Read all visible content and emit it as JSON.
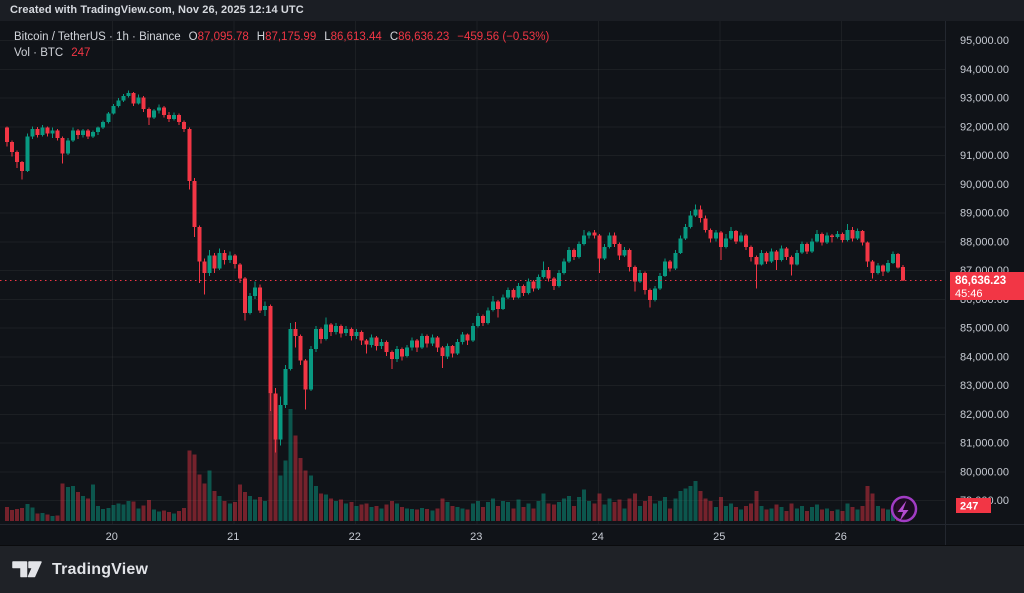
{
  "attribution": "Created with TradingView.com, Nov 26, 2025 12:14 UTC",
  "legend": {
    "title": "Bitcoin / TetherUS · 1h · Binance",
    "o_label": "O",
    "o": "87,095.78",
    "h_label": "H",
    "h": "87,175.99",
    "l_label": "L",
    "l": "86,613.44",
    "c_label": "C",
    "c": "86,636.23",
    "change": "−459.56 (−0.53%)",
    "vol_label": "Vol · BTC",
    "vol_value": "247"
  },
  "price_tag": {
    "price": "86,636.23",
    "countdown": "45:46"
  },
  "vol_tag": {
    "value": "247"
  },
  "footer": {
    "brand": "TradingView"
  },
  "colors": {
    "up": "#089981",
    "down": "#f23645",
    "up_vol": "rgba(8,153,129,0.5)",
    "down_vol": "rgba(242,54,69,0.45)",
    "tag_bg": "#f23645",
    "tag_text": "#ffffff",
    "axis_text": "#c7cbd3",
    "grid": "rgba(250,250,250,0.05)",
    "border": "#23272f",
    "last_price_line": "#f23645",
    "lightning_ring": "#a13cc4",
    "lightning_bolt": "#b44bd0"
  },
  "chart_data": {
    "type": "candlestick+volume",
    "title": "Bitcoin / TetherUS · 1h · Binance",
    "symbol": "BTCUSDT",
    "interval": "1h",
    "exchange": "Binance",
    "last_price": 86636.23,
    "last_volume": 247,
    "ylim": [
      79000,
      95000
    ],
    "grid": true,
    "y_ticks": [
      {
        "v": 95000,
        "label": "95,000.00"
      },
      {
        "v": 94000,
        "label": "94,000.00"
      },
      {
        "v": 93000,
        "label": "93,000.00"
      },
      {
        "v": 92000,
        "label": "92,000.00"
      },
      {
        "v": 91000,
        "label": "91,000.00"
      },
      {
        "v": 90000,
        "label": "90,000.00"
      },
      {
        "v": 89000,
        "label": "89,000.00"
      },
      {
        "v": 88000,
        "label": "88,000.00"
      },
      {
        "v": 87000,
        "label": "87,000.00"
      },
      {
        "v": 86000,
        "label": "86,000.00"
      },
      {
        "v": 85000,
        "label": "85,000.00"
      },
      {
        "v": 84000,
        "label": "84,000.00"
      },
      {
        "v": 83000,
        "label": "83,000.00"
      },
      {
        "v": 82000,
        "label": "82,000.00"
      },
      {
        "v": 81000,
        "label": "81,000.00"
      },
      {
        "v": 80000,
        "label": "80,000.00"
      },
      {
        "v": 79000,
        "label": "79,000.00"
      }
    ],
    "x_ticks": [
      {
        "label": "20",
        "i": 20.7
      },
      {
        "label": "21",
        "i": 44.7
      },
      {
        "label": "22",
        "i": 68.7
      },
      {
        "label": "23",
        "i": 92.7
      },
      {
        "label": "24",
        "i": 116.7
      },
      {
        "label": "25",
        "i": 140.7
      },
      {
        "label": "26",
        "i": 164.7
      }
    ],
    "candles_format": [
      "open",
      "high",
      "low",
      "close",
      "volume_btc"
    ],
    "candles": [
      [
        91950,
        92000,
        91300,
        91450,
        560
      ],
      [
        91450,
        91500,
        90950,
        91100,
        440
      ],
      [
        91100,
        91150,
        90550,
        90750,
        480
      ],
      [
        90750,
        90800,
        90150,
        90450,
        520
      ],
      [
        90450,
        91750,
        90400,
        91650,
        680
      ],
      [
        91650,
        92000,
        91550,
        91900,
        540
      ],
      [
        91900,
        91980,
        91600,
        91700,
        300
      ],
      [
        91700,
        92050,
        91650,
        91950,
        320
      ],
      [
        91950,
        92000,
        91650,
        91750,
        260
      ],
      [
        91750,
        91950,
        91600,
        91850,
        200
      ],
      [
        91850,
        91900,
        91500,
        91600,
        220
      ],
      [
        91600,
        91650,
        90700,
        91050,
        1500
      ],
      [
        91050,
        91600,
        91000,
        91500,
        1350
      ],
      [
        91500,
        91950,
        91450,
        91850,
        1400
      ],
      [
        91850,
        91900,
        91550,
        91700,
        1150
      ],
      [
        91700,
        91900,
        91600,
        91850,
        1000
      ],
      [
        91850,
        91900,
        91550,
        91650,
        900
      ],
      [
        91650,
        91850,
        91600,
        91800,
        1450
      ],
      [
        91800,
        92000,
        91700,
        91950,
        600
      ],
      [
        91950,
        92200,
        91900,
        92150,
        480
      ],
      [
        92150,
        92500,
        92100,
        92450,
        520
      ],
      [
        92450,
        92780,
        92400,
        92700,
        640
      ],
      [
        92700,
        92980,
        92650,
        92900,
        700
      ],
      [
        92900,
        93120,
        92850,
        93050,
        660
      ],
      [
        93050,
        93250,
        93000,
        93150,
        800
      ],
      [
        93150,
        93200,
        92700,
        92800,
        780
      ],
      [
        92800,
        93100,
        92750,
        93000,
        500
      ],
      [
        93000,
        93050,
        92500,
        92600,
        620
      ],
      [
        92600,
        92650,
        92050,
        92300,
        840
      ],
      [
        92300,
        92600,
        92250,
        92550,
        460
      ],
      [
        92550,
        92750,
        92450,
        92650,
        380
      ],
      [
        92650,
        92700,
        92300,
        92400,
        420
      ],
      [
        92400,
        92500,
        92150,
        92250,
        350
      ],
      [
        92250,
        92480,
        92200,
        92400,
        300
      ],
      [
        92400,
        92450,
        92050,
        92150,
        400
      ],
      [
        92150,
        92200,
        91800,
        91900,
        520
      ],
      [
        91900,
        91950,
        89800,
        90100,
        2800
      ],
      [
        90100,
        90200,
        88150,
        88500,
        2650
      ],
      [
        88500,
        88550,
        86550,
        87300,
        1850
      ],
      [
        87300,
        87400,
        86150,
        86900,
        1500
      ],
      [
        86900,
        87700,
        86800,
        87500,
        2000
      ],
      [
        87500,
        87600,
        86900,
        87050,
        1200
      ],
      [
        87050,
        87750,
        87000,
        87600,
        1000
      ],
      [
        87600,
        87700,
        87200,
        87350,
        800
      ],
      [
        87350,
        87650,
        87250,
        87500,
        700
      ],
      [
        87500,
        87550,
        87050,
        87200,
        750
      ],
      [
        87200,
        87250,
        86550,
        86700,
        1450
      ],
      [
        86700,
        86750,
        85250,
        85500,
        1150
      ],
      [
        85500,
        86200,
        85450,
        86100,
        1000
      ],
      [
        86100,
        86600,
        86000,
        86400,
        850
      ],
      [
        86400,
        86500,
        85500,
        85600,
        950
      ],
      [
        85600,
        85900,
        85400,
        85750,
        800
      ],
      [
        85750,
        85800,
        82100,
        82700,
        5050
      ],
      [
        82700,
        82900,
        80650,
        81100,
        3800
      ],
      [
        81100,
        82600,
        80900,
        82300,
        1800
      ],
      [
        82300,
        83700,
        82200,
        83550,
        2400
      ],
      [
        83550,
        85150,
        83500,
        84950,
        4450
      ],
      [
        84950,
        85200,
        84300,
        84700,
        3400
      ],
      [
        84700,
        84750,
        83700,
        83850,
        2500
      ],
      [
        83850,
        83900,
        82150,
        82850,
        2000
      ],
      [
        82850,
        84350,
        82800,
        84250,
        1800
      ],
      [
        84250,
        85050,
        84150,
        84950,
        1400
      ],
      [
        84950,
        85000,
        84450,
        84600,
        1100
      ],
      [
        84600,
        85350,
        84550,
        85100,
        1050
      ],
      [
        85100,
        85150,
        84700,
        84850,
        900
      ],
      [
        84850,
        85150,
        84750,
        85050,
        800
      ],
      [
        85050,
        85100,
        84650,
        84800,
        850
      ],
      [
        84800,
        85050,
        84700,
        84950,
        700
      ],
      [
        84950,
        85000,
        84550,
        84700,
        750
      ],
      [
        84700,
        84950,
        84600,
        84850,
        600
      ],
      [
        84850,
        84900,
        84400,
        84550,
        650
      ],
      [
        84550,
        84600,
        84100,
        84400,
        700
      ],
      [
        84400,
        84750,
        84300,
        84650,
        550
      ],
      [
        84650,
        84700,
        84200,
        84350,
        600
      ],
      [
        84350,
        84600,
        84250,
        84500,
        500
      ],
      [
        84500,
        84550,
        84000,
        84150,
        650
      ],
      [
        84150,
        84200,
        83550,
        83900,
        800
      ],
      [
        83900,
        84350,
        83800,
        84250,
        700
      ],
      [
        84250,
        84300,
        83850,
        84000,
        550
      ],
      [
        84000,
        84400,
        83950,
        84300,
        500
      ],
      [
        84300,
        84650,
        84200,
        84550,
        480
      ],
      [
        84550,
        84600,
        84150,
        84300,
        450
      ],
      [
        84300,
        84800,
        84250,
        84700,
        520
      ],
      [
        84700,
        84750,
        84300,
        84450,
        480
      ],
      [
        84450,
        84750,
        84350,
        84650,
        420
      ],
      [
        84650,
        84700,
        84150,
        84300,
        500
      ],
      [
        84300,
        84350,
        83600,
        84000,
        900
      ],
      [
        84000,
        84450,
        83900,
        84350,
        750
      ],
      [
        84350,
        84400,
        83950,
        84100,
        600
      ],
      [
        84100,
        84600,
        84050,
        84500,
        550
      ],
      [
        84500,
        84850,
        84400,
        84750,
        500
      ],
      [
        84750,
        84800,
        84400,
        84550,
        450
      ],
      [
        84550,
        85150,
        84500,
        85050,
        700
      ],
      [
        85050,
        85500,
        85000,
        85400,
        800
      ],
      [
        85400,
        85450,
        85050,
        85150,
        550
      ],
      [
        85150,
        85700,
        85100,
        85600,
        750
      ],
      [
        85600,
        86100,
        85550,
        85900,
        900
      ],
      [
        85900,
        85950,
        85350,
        85650,
        600
      ],
      [
        85650,
        86150,
        85600,
        86050,
        800
      ],
      [
        86050,
        86400,
        86000,
        86300,
        750
      ],
      [
        86300,
        86350,
        85950,
        86050,
        500
      ],
      [
        86050,
        86550,
        86000,
        86450,
        850
      ],
      [
        86450,
        86500,
        86100,
        86200,
        550
      ],
      [
        86200,
        86700,
        86150,
        86600,
        700
      ],
      [
        86600,
        86650,
        86250,
        86350,
        500
      ],
      [
        86350,
        86850,
        86300,
        86750,
        800
      ],
      [
        86750,
        87300,
        86700,
        87000,
        1100
      ],
      [
        87000,
        87100,
        86600,
        86700,
        700
      ],
      [
        86700,
        86750,
        86300,
        86450,
        650
      ],
      [
        86450,
        87000,
        86400,
        86900,
        750
      ],
      [
        86900,
        87400,
        86850,
        87300,
        900
      ],
      [
        87300,
        87800,
        87250,
        87700,
        1000
      ],
      [
        87700,
        87750,
        87350,
        87450,
        600
      ],
      [
        87450,
        88000,
        87400,
        87900,
        950
      ],
      [
        87900,
        88400,
        87850,
        88200,
        1250
      ],
      [
        88200,
        88350,
        88100,
        88300,
        800
      ],
      [
        88300,
        88400,
        88100,
        88200,
        700
      ],
      [
        88200,
        88250,
        86900,
        87400,
        1100
      ],
      [
        87400,
        87900,
        87350,
        87800,
        650
      ],
      [
        87800,
        88300,
        87750,
        88200,
        900
      ],
      [
        88200,
        88300,
        87800,
        87900,
        750
      ],
      [
        87900,
        87950,
        87350,
        87500,
        850
      ],
      [
        87500,
        87800,
        87450,
        87700,
        500
      ],
      [
        87700,
        87750,
        86950,
        87100,
        900
      ],
      [
        87100,
        87150,
        86250,
        86600,
        1100
      ],
      [
        86600,
        87000,
        86550,
        86900,
        600
      ],
      [
        86900,
        86950,
        86150,
        86300,
        800
      ],
      [
        86300,
        86350,
        85700,
        85950,
        1000
      ],
      [
        85950,
        86450,
        85900,
        86350,
        700
      ],
      [
        86350,
        86900,
        86300,
        86800,
        800
      ],
      [
        86800,
        87400,
        86750,
        87300,
        950
      ],
      [
        87300,
        87350,
        86950,
        87050,
        500
      ],
      [
        87050,
        87700,
        87000,
        87600,
        900
      ],
      [
        87600,
        88200,
        87550,
        88100,
        1200
      ],
      [
        88100,
        88600,
        88050,
        88500,
        1300
      ],
      [
        88500,
        89050,
        88450,
        88900,
        1400
      ],
      [
        88900,
        89280,
        88850,
        89100,
        1600
      ],
      [
        89100,
        89250,
        88650,
        88800,
        1200
      ],
      [
        88800,
        88900,
        88300,
        88400,
        900
      ],
      [
        88400,
        88450,
        87950,
        88100,
        800
      ],
      [
        88100,
        88400,
        88000,
        88300,
        550
      ],
      [
        88300,
        88350,
        87350,
        87800,
        950
      ],
      [
        87800,
        88250,
        87750,
        88100,
        600
      ],
      [
        88100,
        88500,
        88050,
        88350,
        700
      ],
      [
        88350,
        88400,
        87900,
        88000,
        550
      ],
      [
        88000,
        88300,
        87950,
        88200,
        450
      ],
      [
        88200,
        88250,
        87700,
        87800,
        600
      ],
      [
        87800,
        87850,
        87300,
        87450,
        700
      ],
      [
        87450,
        87500,
        86350,
        87200,
        1200
      ],
      [
        87200,
        87700,
        87150,
        87600,
        600
      ],
      [
        87600,
        87650,
        87200,
        87300,
        450
      ],
      [
        87300,
        87750,
        87250,
        87650,
        500
      ],
      [
        87650,
        87700,
        87000,
        87350,
        650
      ],
      [
        87350,
        87850,
        87300,
        87750,
        550
      ],
      [
        87750,
        87800,
        87350,
        87450,
        400
      ],
      [
        87450,
        87500,
        86800,
        87200,
        700
      ],
      [
        87200,
        87700,
        87150,
        87600,
        500
      ],
      [
        87600,
        88000,
        87550,
        87900,
        600
      ],
      [
        87900,
        87950,
        87550,
        87650,
        400
      ],
      [
        87650,
        88100,
        87600,
        88000,
        550
      ],
      [
        88000,
        88400,
        87950,
        88250,
        650
      ],
      [
        88250,
        88300,
        87850,
        87950,
        450
      ],
      [
        87950,
        88300,
        87900,
        88200,
        500
      ],
      [
        88200,
        88250,
        87950,
        88150,
        400
      ],
      [
        88150,
        88350,
        88100,
        88250,
        450
      ],
      [
        88250,
        88300,
        87950,
        88050,
        400
      ],
      [
        88050,
        88600,
        88000,
        88400,
        700
      ],
      [
        88400,
        88500,
        88000,
        88100,
        550
      ],
      [
        88100,
        88450,
        88050,
        88350,
        450
      ],
      [
        88350,
        88400,
        87850,
        87950,
        600
      ],
      [
        87950,
        88000,
        87100,
        87300,
        1400
      ],
      [
        87300,
        87350,
        86700,
        86900,
        1100
      ],
      [
        86900,
        87250,
        86850,
        87150,
        600
      ],
      [
        87150,
        87200,
        86800,
        86950,
        500
      ],
      [
        86950,
        87350,
        86900,
        87250,
        450
      ],
      [
        87250,
        87650,
        87200,
        87550,
        500
      ],
      [
        87550,
        87600,
        87050,
        87095.78,
        800
      ],
      [
        87095.78,
        87175.99,
        86613.44,
        86636.23,
        247
      ]
    ]
  }
}
